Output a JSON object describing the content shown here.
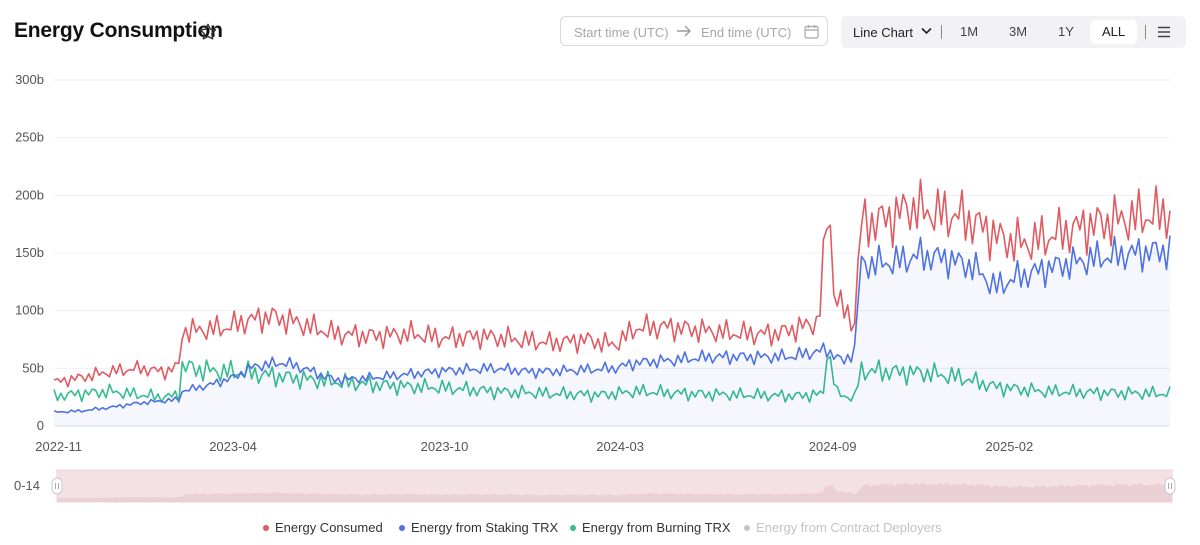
{
  "header": {
    "title": "Energy Consumption",
    "start_placeholder": "Start time (UTC)",
    "end_placeholder": "End time (UTC)",
    "chart_type_label": "Line Chart",
    "ranges": [
      "1M",
      "3M",
      "1Y",
      "ALL"
    ],
    "active_range": "ALL"
  },
  "slider": {
    "start_label": "0-14"
  },
  "chart_data": {
    "type": "line",
    "title": "Energy Consumption",
    "xlabel": "",
    "ylabel": "",
    "ylim": [
      0,
      300
    ],
    "y_unit_suffix": "b",
    "yticks": [
      "0",
      "50b",
      "100b",
      "150b",
      "200b",
      "250b",
      "300b"
    ],
    "xticks": [
      "2022-11",
      "2023-04",
      "2023-10",
      "2024-03",
      "2024-09",
      "2025-02"
    ],
    "x_range": [
      "2022-10-28",
      "2025-06-20"
    ],
    "grid": "horizontal",
    "legend_position": "bottom",
    "series": [
      {
        "name": "Energy Consumed",
        "color": "#e05a62",
        "visible": true,
        "points": [
          [
            "2022-10-28",
            38
          ],
          [
            "2022-11-20",
            42
          ],
          [
            "2022-12-15",
            47
          ],
          [
            "2023-01-10",
            50
          ],
          [
            "2023-02-01",
            47
          ],
          [
            "2023-02-13",
            52
          ],
          [
            "2023-02-14",
            82
          ],
          [
            "2023-03-01",
            83
          ],
          [
            "2023-03-25",
            85
          ],
          [
            "2023-04-15",
            92
          ],
          [
            "2023-05-05",
            95
          ],
          [
            "2023-05-25",
            90
          ],
          [
            "2023-06-10",
            85
          ],
          [
            "2023-06-28",
            80
          ],
          [
            "2023-08-01",
            78
          ],
          [
            "2023-09-01",
            80
          ],
          [
            "2023-10-01",
            76
          ],
          [
            "2023-11-01",
            78
          ],
          [
            "2023-12-01",
            75
          ],
          [
            "2024-01-01",
            72
          ],
          [
            "2024-02-01",
            75
          ],
          [
            "2024-02-25",
            70
          ],
          [
            "2024-03-15",
            85
          ],
          [
            "2024-04-10",
            86
          ],
          [
            "2024-05-10",
            83
          ],
          [
            "2024-06-10",
            80
          ],
          [
            "2024-07-15",
            80
          ],
          [
            "2024-08-01",
            85
          ],
          [
            "2024-08-20",
            90
          ],
          [
            "2024-08-27",
            180
          ],
          [
            "2024-08-30",
            175
          ],
          [
            "2024-09-02",
            118
          ],
          [
            "2024-09-10",
            100
          ],
          [
            "2024-09-20",
            90
          ],
          [
            "2024-09-25",
            175
          ],
          [
            "2024-10-10",
            178
          ],
          [
            "2024-10-25",
            182
          ],
          [
            "2024-11-05",
            190
          ],
          [
            "2024-11-25",
            185
          ],
          [
            "2024-12-20",
            182
          ],
          [
            "2025-01-10",
            172
          ],
          [
            "2025-01-25",
            162
          ],
          [
            "2025-02-15",
            158
          ],
          [
            "2025-03-10",
            165
          ],
          [
            "2025-04-01",
            172
          ],
          [
            "2025-05-01",
            178
          ],
          [
            "2025-06-01",
            182
          ],
          [
            "2025-06-20",
            185
          ]
        ]
      },
      {
        "name": "Energy from Staking TRX",
        "color": "#4f72e3",
        "visible": true,
        "points": [
          [
            "2022-10-28",
            12
          ],
          [
            "2022-11-20",
            13
          ],
          [
            "2022-12-15",
            16
          ],
          [
            "2023-01-10",
            20
          ],
          [
            "2023-02-13",
            23
          ],
          [
            "2023-02-14",
            30
          ],
          [
            "2023-03-10",
            35
          ],
          [
            "2023-04-01",
            42
          ],
          [
            "2023-04-20",
            52
          ],
          [
            "2023-05-15",
            55
          ],
          [
            "2023-06-01",
            50
          ],
          [
            "2023-06-28",
            40
          ],
          [
            "2023-08-01",
            42
          ],
          [
            "2023-09-01",
            45
          ],
          [
            "2023-10-01",
            48
          ],
          [
            "2023-11-15",
            50
          ],
          [
            "2023-12-15",
            47
          ],
          [
            "2024-01-15",
            48
          ],
          [
            "2024-02-25",
            50
          ],
          [
            "2024-03-15",
            55
          ],
          [
            "2024-04-15",
            57
          ],
          [
            "2024-05-20",
            60
          ],
          [
            "2024-06-20",
            60
          ],
          [
            "2024-07-25",
            60
          ],
          [
            "2024-08-27",
            66
          ],
          [
            "2024-09-02",
            62
          ],
          [
            "2024-09-10",
            55
          ],
          [
            "2024-09-20",
            66
          ],
          [
            "2024-09-25",
            140
          ],
          [
            "2024-10-25",
            142
          ],
          [
            "2024-11-15",
            148
          ],
          [
            "2024-12-10",
            145
          ],
          [
            "2025-01-01",
            138
          ],
          [
            "2025-01-20",
            120
          ],
          [
            "2025-02-05",
            128
          ],
          [
            "2025-03-10",
            138
          ],
          [
            "2025-04-15",
            145
          ],
          [
            "2025-05-20",
            150
          ],
          [
            "2025-06-20",
            152
          ]
        ]
      },
      {
        "name": "Energy from Burning TRX",
        "color": "#34bd8d",
        "visible": true,
        "points": [
          [
            "2022-10-28",
            26
          ],
          [
            "2022-11-20",
            28
          ],
          [
            "2022-12-15",
            30
          ],
          [
            "2023-01-10",
            27
          ],
          [
            "2023-02-01",
            25
          ],
          [
            "2023-02-13",
            27
          ],
          [
            "2023-02-14",
            52
          ],
          [
            "2023-03-10",
            48
          ],
          [
            "2023-04-15",
            46
          ],
          [
            "2023-05-20",
            42
          ],
          [
            "2023-07-01",
            38
          ],
          [
            "2023-08-15",
            35
          ],
          [
            "2023-10-01",
            33
          ],
          [
            "2023-11-15",
            30
          ],
          [
            "2024-01-01",
            28
          ],
          [
            "2024-02-15",
            27
          ],
          [
            "2024-03-15",
            30
          ],
          [
            "2024-05-01",
            28
          ],
          [
            "2024-06-15",
            27
          ],
          [
            "2024-08-01",
            26
          ],
          [
            "2024-08-26",
            28
          ],
          [
            "2024-08-27",
            70
          ],
          [
            "2024-08-30",
            55
          ],
          [
            "2024-09-05",
            28
          ],
          [
            "2024-09-20",
            24
          ],
          [
            "2024-09-25",
            48
          ],
          [
            "2024-10-20",
            47
          ],
          [
            "2024-11-20",
            46
          ],
          [
            "2024-12-20",
            42
          ],
          [
            "2025-01-20",
            34
          ],
          [
            "2025-03-01",
            30
          ],
          [
            "2025-04-15",
            29
          ],
          [
            "2025-06-20",
            28
          ]
        ]
      },
      {
        "name": "Energy from Contract Deployers",
        "color": "#c2c2c8",
        "visible": false,
        "points": []
      }
    ]
  }
}
